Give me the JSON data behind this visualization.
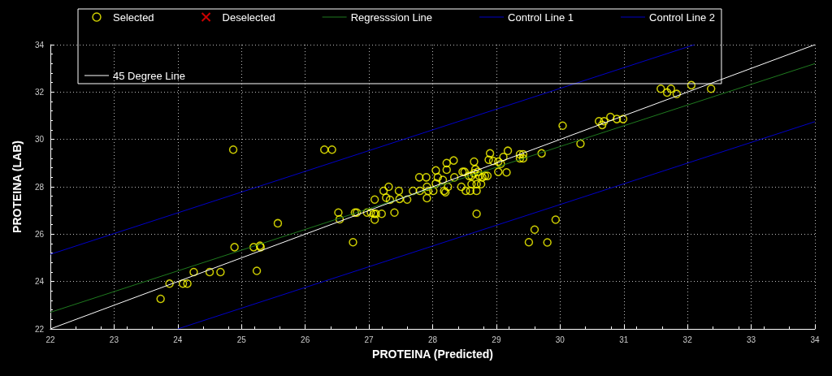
{
  "chart_data": {
    "type": "scatter",
    "xlabel": "PROTEINA (Predicted)",
    "ylabel": "PROTEINA (LAB)",
    "xlim": [
      22,
      34
    ],
    "ylim": [
      22,
      34
    ],
    "xticks": [
      22,
      23,
      24,
      25,
      26,
      27,
      28,
      29,
      30,
      31,
      32,
      33,
      34
    ],
    "yticks": [
      22,
      24,
      26,
      28,
      30,
      32,
      34
    ],
    "grid": true,
    "legend": "top",
    "series": [
      {
        "name": "Selected",
        "marker": "circle",
        "color": "#ffff00",
        "x": [
          24.87,
          26.3,
          26.42,
          25.57,
          26.52,
          26.54,
          26.75,
          26.78,
          26.81,
          26.97,
          24.89,
          25.19,
          25.29,
          25.3,
          25.24,
          24.25,
          24.5,
          24.67,
          23.87,
          24.08,
          24.15,
          23.73,
          27.03,
          27.08,
          27.11,
          27.2,
          27.09,
          27.09,
          27.4,
          27.23,
          27.31,
          27.27,
          27.33,
          27.47,
          27.48,
          27.6,
          27.69,
          27.8,
          27.93,
          28.01,
          27.91,
          27.91,
          27.79,
          27.9,
          28.05,
          28.08,
          28.05,
          28.16,
          28.18,
          28.24,
          28.2,
          28.22,
          28.33,
          28.22,
          28.34,
          28.45,
          28.52,
          28.59,
          28.69,
          28.47,
          28.5,
          28.57,
          28.61,
          28.65,
          28.67,
          28.71,
          28.73,
          28.78,
          28.82,
          28.86,
          28.65,
          28.61,
          28.69,
          28.76,
          28.69,
          28.9,
          28.88,
          28.95,
          29.03,
          29.11,
          29.07,
          29.18,
          29.03,
          29.16,
          29.37,
          29.42,
          29.37,
          29.42,
          29.71,
          29.6,
          29.51,
          30.04,
          30.32,
          30.61,
          30.69,
          30.66,
          30.79,
          30.89,
          30.99,
          31.58,
          31.68,
          31.74,
          31.83,
          32.06,
          32.37,
          29.93,
          29.8
        ],
        "values": [
          29.57,
          29.57,
          29.57,
          26.46,
          26.91,
          26.63,
          25.66,
          26.91,
          26.91,
          26.91,
          25.45,
          25.45,
          25.51,
          25.45,
          24.45,
          24.4,
          24.4,
          24.4,
          23.91,
          23.91,
          23.91,
          23.27,
          26.91,
          26.86,
          26.86,
          26.86,
          26.61,
          27.46,
          26.91,
          27.83,
          28.0,
          27.54,
          27.45,
          27.83,
          27.49,
          27.46,
          27.83,
          27.83,
          27.83,
          27.83,
          27.52,
          28.0,
          28.4,
          28.4,
          28.69,
          28.4,
          28.14,
          28.29,
          27.83,
          28.0,
          27.77,
          29.0,
          29.11,
          28.72,
          28.4,
          28.0,
          27.83,
          27.83,
          27.83,
          28.63,
          28.63,
          28.46,
          28.46,
          28.57,
          28.74,
          28.63,
          28.46,
          28.4,
          28.46,
          28.46,
          29.06,
          28.11,
          28.11,
          28.11,
          26.86,
          29.41,
          29.14,
          29.09,
          29.06,
          29.26,
          28.97,
          29.52,
          28.63,
          28.61,
          29.37,
          29.37,
          29.2,
          29.2,
          29.41,
          26.19,
          25.66,
          30.58,
          29.82,
          30.77,
          30.77,
          30.61,
          30.95,
          30.86,
          30.86,
          32.14,
          31.98,
          32.14,
          31.92,
          32.29,
          32.14,
          26.61,
          25.65
        ]
      },
      {
        "name": "Deselected",
        "type": "scatter",
        "marker": "cross",
        "color": "#ff0000"
      },
      {
        "name": "Regresssion Line",
        "type": "line",
        "marker": "none",
        "line_style": "solid",
        "color": "#1f7a1f",
        "x": [
          22,
          34
        ],
        "values": [
          22.7,
          33.2
        ]
      },
      {
        "name": "Control Line 1",
        "type": "line",
        "marker": "none",
        "line_style": "solid",
        "color": "#0000c8",
        "x": [
          22,
          32.11
        ],
        "values": [
          25.15,
          34
        ]
      },
      {
        "name": "Control Line 2",
        "type": "line",
        "marker": "none",
        "line_style": "solid",
        "color": "#0000c8",
        "x": [
          24.0,
          34
        ],
        "values": [
          22,
          30.75
        ]
      },
      {
        "name": "45 Degree Line",
        "type": "line",
        "marker": "none",
        "line_style": "solid",
        "color": "#ffffff",
        "x": [
          22,
          34
        ],
        "values": [
          22,
          34
        ]
      }
    ]
  }
}
